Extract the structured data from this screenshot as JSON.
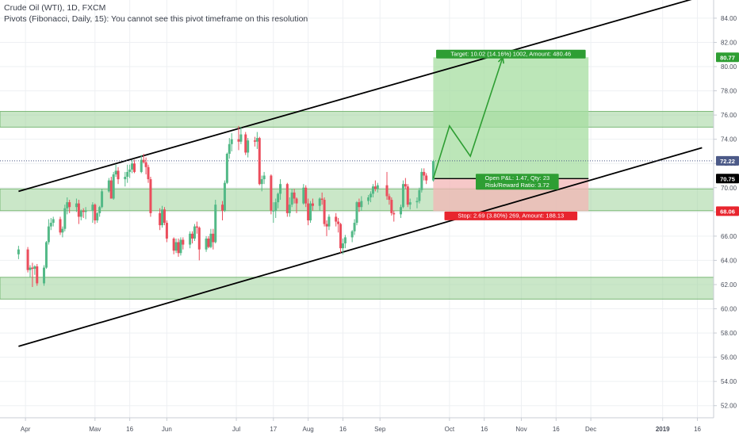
{
  "header": {
    "title": "Crude Oil (WTI), 1D, FXCM",
    "pivots_note": "Pivots (Fibonacci, Daily, 15): You cannot see this pivot timeframe on this resolution"
  },
  "colors": {
    "bull": "#53b987",
    "bear": "#eb4d5c",
    "zone_fill": "#9fd39b",
    "zone_stroke": "#7bb877",
    "target_fill": "#a5dea0",
    "stop_fill": "#f3b6b6",
    "target_label": "#2e9e33",
    "stop_label": "#e8252e",
    "entry_label": "#2e9e33",
    "price_line": "#4c5a88",
    "axis_text": "#4a4f5b",
    "grid": "#eef0f3"
  },
  "chart_data": {
    "type": "candlestick",
    "symbol": "Crude Oil (WTI)",
    "timeframe": "1D",
    "ylim": [
      51,
      85.5
    ],
    "y_ticks": [
      52.0,
      54.0,
      56.0,
      58.0,
      60.0,
      62.0,
      64.0,
      66.0,
      68.0,
      70.0,
      72.0,
      74.0,
      76.0,
      78.0,
      80.0,
      82.0,
      84.0
    ],
    "x_labels": [
      {
        "label": "Apr",
        "date": "2018-04-01"
      },
      {
        "label": "Mav",
        "date": "2018-05-01"
      },
      {
        "label": "16",
        "date": "2018-05-16"
      },
      {
        "label": "Jun",
        "date": "2018-06-01"
      },
      {
        "label": "Jul",
        "date": "2018-07-01"
      },
      {
        "label": "17",
        "date": "2018-07-17"
      },
      {
        "label": "Aug",
        "date": "2018-08-01"
      },
      {
        "label": "16",
        "date": "2018-08-16"
      },
      {
        "label": "Sep",
        "date": "2018-09-01"
      },
      {
        "label": "Oct",
        "date": "2018-10-01"
      },
      {
        "label": "16",
        "date": "2018-10-16"
      },
      {
        "label": "Nov",
        "date": "2018-11-01"
      },
      {
        "label": "16",
        "date": "2018-11-16"
      },
      {
        "label": "Dec",
        "date": "2018-12-01"
      },
      {
        "label": "2019",
        "date": "2019-01-01"
      },
      {
        "label": "16",
        "date": "2019-01-16"
      }
    ],
    "candles": [
      {
        "date": "2018-03-29",
        "o": 64.5,
        "h": 65.2,
        "l": 64.1,
        "c": 64.9
      },
      {
        "date": "2018-04-02",
        "o": 64.9,
        "h": 65.1,
        "l": 63.0,
        "c": 63.2
      },
      {
        "date": "2018-04-03",
        "o": 63.2,
        "h": 63.6,
        "l": 62.6,
        "c": 63.4
      },
      {
        "date": "2018-04-04",
        "o": 63.4,
        "h": 63.8,
        "l": 61.8,
        "c": 63.3
      },
      {
        "date": "2018-04-05",
        "o": 63.3,
        "h": 63.6,
        "l": 62.8,
        "c": 63.5
      },
      {
        "date": "2018-04-06",
        "o": 63.5,
        "h": 63.7,
        "l": 61.9,
        "c": 62.1
      },
      {
        "date": "2018-04-09",
        "o": 62.1,
        "h": 63.6,
        "l": 61.9,
        "c": 63.4
      },
      {
        "date": "2018-04-10",
        "o": 63.4,
        "h": 65.6,
        "l": 63.3,
        "c": 65.5
      },
      {
        "date": "2018-04-11",
        "o": 65.5,
        "h": 67.4,
        "l": 65.3,
        "c": 66.8
      },
      {
        "date": "2018-04-12",
        "o": 66.8,
        "h": 67.5,
        "l": 66.5,
        "c": 67.1
      },
      {
        "date": "2018-04-13",
        "o": 67.1,
        "h": 67.6,
        "l": 66.8,
        "c": 67.4
      },
      {
        "date": "2018-04-16",
        "o": 67.4,
        "h": 67.6,
        "l": 66.1,
        "c": 66.3
      },
      {
        "date": "2018-04-17",
        "o": 66.3,
        "h": 66.8,
        "l": 65.9,
        "c": 66.6
      },
      {
        "date": "2018-04-18",
        "o": 66.6,
        "h": 68.6,
        "l": 66.4,
        "c": 68.3
      },
      {
        "date": "2018-04-19",
        "o": 68.3,
        "h": 69.2,
        "l": 67.8,
        "c": 68.8
      },
      {
        "date": "2018-04-20",
        "o": 68.8,
        "h": 69.0,
        "l": 67.9,
        "c": 68.4
      },
      {
        "date": "2018-04-23",
        "o": 68.4,
        "h": 69.1,
        "l": 68.0,
        "c": 68.7
      },
      {
        "date": "2018-04-24",
        "o": 68.7,
        "h": 69.0,
        "l": 67.0,
        "c": 67.6
      },
      {
        "date": "2018-04-25",
        "o": 67.6,
        "h": 68.2,
        "l": 67.3,
        "c": 68.1
      },
      {
        "date": "2018-04-26",
        "o": 68.1,
        "h": 68.3,
        "l": 67.5,
        "c": 68.0
      },
      {
        "date": "2018-04-27",
        "o": 68.0,
        "h": 68.4,
        "l": 67.4,
        "c": 68.1
      },
      {
        "date": "2018-04-30",
        "o": 68.1,
        "h": 68.8,
        "l": 67.1,
        "c": 68.6
      },
      {
        "date": "2018-05-01",
        "o": 68.6,
        "h": 68.7,
        "l": 67.0,
        "c": 67.3
      },
      {
        "date": "2018-05-02",
        "o": 67.3,
        "h": 68.0,
        "l": 67.1,
        "c": 67.9
      },
      {
        "date": "2018-05-03",
        "o": 67.9,
        "h": 68.5,
        "l": 67.6,
        "c": 68.4
      },
      {
        "date": "2018-05-04",
        "o": 68.4,
        "h": 69.9,
        "l": 68.3,
        "c": 69.7
      },
      {
        "date": "2018-05-07",
        "o": 69.7,
        "h": 70.8,
        "l": 69.6,
        "c": 70.6
      },
      {
        "date": "2018-05-08",
        "o": 70.6,
        "h": 70.9,
        "l": 69.1,
        "c": 69.1
      },
      {
        "date": "2018-05-09",
        "o": 69.1,
        "h": 71.3,
        "l": 69.0,
        "c": 71.1
      },
      {
        "date": "2018-05-10",
        "o": 71.1,
        "h": 71.9,
        "l": 70.9,
        "c": 71.4
      },
      {
        "date": "2018-05-11",
        "o": 71.4,
        "h": 71.7,
        "l": 70.3,
        "c": 70.7
      },
      {
        "date": "2018-05-14",
        "o": 70.7,
        "h": 71.3,
        "l": 70.1,
        "c": 70.9
      },
      {
        "date": "2018-05-15",
        "o": 70.9,
        "h": 71.9,
        "l": 70.4,
        "c": 71.3
      },
      {
        "date": "2018-05-16",
        "o": 71.3,
        "h": 71.9,
        "l": 70.8,
        "c": 71.5
      },
      {
        "date": "2018-05-17",
        "o": 71.5,
        "h": 72.3,
        "l": 71.2,
        "c": 72.0
      },
      {
        "date": "2018-05-18",
        "o": 72.0,
        "h": 72.3,
        "l": 71.2,
        "c": 71.3
      },
      {
        "date": "2018-05-21",
        "o": 71.3,
        "h": 72.7,
        "l": 71.2,
        "c": 72.3
      },
      {
        "date": "2018-05-22",
        "o": 72.3,
        "h": 72.8,
        "l": 72.0,
        "c": 72.1
      },
      {
        "date": "2018-05-23",
        "o": 72.1,
        "h": 72.5,
        "l": 71.1,
        "c": 71.7
      },
      {
        "date": "2018-05-24",
        "o": 71.7,
        "h": 71.9,
        "l": 70.4,
        "c": 70.7
      },
      {
        "date": "2018-05-25",
        "o": 70.7,
        "h": 70.9,
        "l": 67.6,
        "c": 67.9
      },
      {
        "date": "2018-05-29",
        "o": 67.9,
        "h": 68.3,
        "l": 66.5,
        "c": 66.9
      },
      {
        "date": "2018-05-30",
        "o": 66.9,
        "h": 68.5,
        "l": 66.7,
        "c": 68.2
      },
      {
        "date": "2018-05-31",
        "o": 68.2,
        "h": 68.4,
        "l": 66.9,
        "c": 67.1
      },
      {
        "date": "2018-06-01",
        "o": 67.1,
        "h": 67.3,
        "l": 65.5,
        "c": 65.8
      },
      {
        "date": "2018-06-04",
        "o": 65.8,
        "h": 65.9,
        "l": 64.5,
        "c": 64.8
      },
      {
        "date": "2018-06-05",
        "o": 64.8,
        "h": 65.8,
        "l": 64.6,
        "c": 65.5
      },
      {
        "date": "2018-06-06",
        "o": 65.5,
        "h": 65.8,
        "l": 64.3,
        "c": 64.6
      },
      {
        "date": "2018-06-07",
        "o": 64.6,
        "h": 65.9,
        "l": 64.4,
        "c": 65.7
      },
      {
        "date": "2018-06-08",
        "o": 65.7,
        "h": 65.9,
        "l": 64.9,
        "c": 65.3
      },
      {
        "date": "2018-06-11",
        "o": 65.3,
        "h": 66.4,
        "l": 65.0,
        "c": 66.2
      },
      {
        "date": "2018-06-12",
        "o": 66.2,
        "h": 66.4,
        "l": 65.4,
        "c": 65.8
      },
      {
        "date": "2018-06-13",
        "o": 65.8,
        "h": 67.0,
        "l": 65.6,
        "c": 66.8
      },
      {
        "date": "2018-06-14",
        "o": 66.8,
        "h": 67.2,
        "l": 66.2,
        "c": 66.7
      },
      {
        "date": "2018-06-15",
        "o": 66.7,
        "h": 66.8,
        "l": 64.0,
        "c": 64.9
      },
      {
        "date": "2018-06-18",
        "o": 64.9,
        "h": 66.0,
        "l": 64.7,
        "c": 65.8
      },
      {
        "date": "2018-06-19",
        "o": 65.8,
        "h": 66.0,
        "l": 65.0,
        "c": 65.1
      },
      {
        "date": "2018-06-20",
        "o": 65.1,
        "h": 66.6,
        "l": 65.0,
        "c": 66.2
      },
      {
        "date": "2018-06-21",
        "o": 66.2,
        "h": 66.6,
        "l": 64.9,
        "c": 65.5
      },
      {
        "date": "2018-06-22",
        "o": 65.5,
        "h": 69.0,
        "l": 65.4,
        "c": 68.6
      },
      {
        "date": "2018-06-25",
        "o": 68.6,
        "h": 68.9,
        "l": 67.3,
        "c": 68.1
      },
      {
        "date": "2018-06-26",
        "o": 68.1,
        "h": 70.6,
        "l": 68.0,
        "c": 70.4
      },
      {
        "date": "2018-06-27",
        "o": 70.4,
        "h": 72.9,
        "l": 70.3,
        "c": 72.8
      },
      {
        "date": "2018-06-28",
        "o": 72.8,
        "h": 74.1,
        "l": 72.4,
        "c": 73.6
      },
      {
        "date": "2018-06-29",
        "o": 73.6,
        "h": 74.5,
        "l": 73.0,
        "c": 74.0
      },
      {
        "date": "2018-07-02",
        "o": 74.0,
        "h": 75.1,
        "l": 73.1,
        "c": 73.8
      },
      {
        "date": "2018-07-03",
        "o": 73.8,
        "h": 75.0,
        "l": 73.6,
        "c": 74.4
      },
      {
        "date": "2018-07-05",
        "o": 74.4,
        "h": 74.6,
        "l": 72.7,
        "c": 72.9
      },
      {
        "date": "2018-07-06",
        "o": 72.9,
        "h": 74.1,
        "l": 72.5,
        "c": 73.9
      },
      {
        "date": "2018-07-09",
        "o": 73.9,
        "h": 74.2,
        "l": 73.4,
        "c": 73.8
      },
      {
        "date": "2018-07-10",
        "o": 73.8,
        "h": 74.6,
        "l": 73.2,
        "c": 74.1
      },
      {
        "date": "2018-07-11",
        "o": 74.1,
        "h": 74.2,
        "l": 70.2,
        "c": 70.3
      },
      {
        "date": "2018-07-12",
        "o": 70.3,
        "h": 71.0,
        "l": 69.7,
        "c": 70.7
      },
      {
        "date": "2018-07-13",
        "o": 70.7,
        "h": 71.3,
        "l": 70.3,
        "c": 71.0
      },
      {
        "date": "2018-07-16",
        "o": 71.0,
        "h": 71.1,
        "l": 67.8,
        "c": 68.1
      },
      {
        "date": "2018-07-17",
        "o": 68.1,
        "h": 68.8,
        "l": 67.1,
        "c": 68.1
      },
      {
        "date": "2018-07-18",
        "o": 68.1,
        "h": 69.1,
        "l": 67.5,
        "c": 68.8
      },
      {
        "date": "2018-07-19",
        "o": 68.8,
        "h": 69.6,
        "l": 68.3,
        "c": 69.5
      },
      {
        "date": "2018-07-20",
        "o": 69.5,
        "h": 70.7,
        "l": 69.0,
        "c": 70.3
      },
      {
        "date": "2018-07-23",
        "o": 70.3,
        "h": 70.4,
        "l": 67.6,
        "c": 67.9
      },
      {
        "date": "2018-07-24",
        "o": 67.9,
        "h": 69.2,
        "l": 67.6,
        "c": 68.6
      },
      {
        "date": "2018-07-25",
        "o": 68.6,
        "h": 69.9,
        "l": 68.4,
        "c": 69.6
      },
      {
        "date": "2018-07-26",
        "o": 69.6,
        "h": 69.9,
        "l": 68.7,
        "c": 69.1
      },
      {
        "date": "2018-07-27",
        "o": 69.1,
        "h": 69.2,
        "l": 67.9,
        "c": 68.7
      },
      {
        "date": "2018-07-30",
        "o": 68.7,
        "h": 70.3,
        "l": 68.6,
        "c": 70.0
      },
      {
        "date": "2018-07-31",
        "o": 70.0,
        "h": 70.2,
        "l": 68.4,
        "c": 68.7
      },
      {
        "date": "2018-08-01",
        "o": 68.7,
        "h": 69.1,
        "l": 66.9,
        "c": 67.3
      },
      {
        "date": "2018-08-02",
        "o": 67.3,
        "h": 68.9,
        "l": 67.1,
        "c": 68.7
      },
      {
        "date": "2018-08-03",
        "o": 68.7,
        "h": 69.1,
        "l": 68.1,
        "c": 68.5
      },
      {
        "date": "2018-08-06",
        "o": 68.5,
        "h": 69.2,
        "l": 68.1,
        "c": 69.1
      },
      {
        "date": "2018-08-07",
        "o": 69.1,
        "h": 69.6,
        "l": 68.6,
        "c": 69.0
      },
      {
        "date": "2018-08-08",
        "o": 69.0,
        "h": 69.2,
        "l": 66.8,
        "c": 67.0
      },
      {
        "date": "2018-08-09",
        "o": 67.0,
        "h": 67.3,
        "l": 66.0,
        "c": 66.8
      },
      {
        "date": "2018-08-10",
        "o": 66.8,
        "h": 67.8,
        "l": 66.5,
        "c": 67.6
      },
      {
        "date": "2018-08-13",
        "o": 67.6,
        "h": 67.9,
        "l": 66.8,
        "c": 67.2
      },
      {
        "date": "2018-08-14",
        "o": 67.2,
        "h": 67.5,
        "l": 66.3,
        "c": 67.0
      },
      {
        "date": "2018-08-15",
        "o": 67.0,
        "h": 67.1,
        "l": 64.6,
        "c": 65.0
      },
      {
        "date": "2018-08-16",
        "o": 65.0,
        "h": 65.8,
        "l": 64.5,
        "c": 65.4
      },
      {
        "date": "2018-08-17",
        "o": 65.4,
        "h": 66.1,
        "l": 65.0,
        "c": 65.9
      },
      {
        "date": "2018-08-20",
        "o": 65.9,
        "h": 66.5,
        "l": 65.5,
        "c": 66.4
      },
      {
        "date": "2018-08-21",
        "o": 66.4,
        "h": 67.4,
        "l": 66.1,
        "c": 67.1
      },
      {
        "date": "2018-08-22",
        "o": 67.1,
        "h": 68.9,
        "l": 66.9,
        "c": 68.8
      },
      {
        "date": "2018-08-23",
        "o": 68.8,
        "h": 69.1,
        "l": 68.0,
        "c": 68.4
      },
      {
        "date": "2018-08-24",
        "o": 68.4,
        "h": 69.3,
        "l": 68.1,
        "c": 68.9
      },
      {
        "date": "2018-08-27",
        "o": 68.9,
        "h": 69.4,
        "l": 68.6,
        "c": 69.2
      },
      {
        "date": "2018-08-28",
        "o": 69.2,
        "h": 69.7,
        "l": 68.8,
        "c": 69.5
      },
      {
        "date": "2018-08-29",
        "o": 69.5,
        "h": 70.3,
        "l": 69.2,
        "c": 70.1
      },
      {
        "date": "2018-08-30",
        "o": 70.1,
        "h": 70.6,
        "l": 69.7,
        "c": 69.9
      },
      {
        "date": "2018-08-31",
        "o": 69.9,
        "h": 70.4,
        "l": 69.6,
        "c": 70.2
      },
      {
        "date": "2018-09-04",
        "o": 70.2,
        "h": 71.3,
        "l": 69.0,
        "c": 69.3
      },
      {
        "date": "2018-09-05",
        "o": 69.3,
        "h": 69.5,
        "l": 68.6,
        "c": 69.0
      },
      {
        "date": "2018-09-06",
        "o": 69.0,
        "h": 69.2,
        "l": 67.7,
        "c": 67.9
      },
      {
        "date": "2018-09-07",
        "o": 67.9,
        "h": 68.1,
        "l": 67.2,
        "c": 67.8
      },
      {
        "date": "2018-09-10",
        "o": 67.8,
        "h": 68.6,
        "l": 67.5,
        "c": 68.4
      },
      {
        "date": "2018-09-11",
        "o": 68.4,
        "h": 70.6,
        "l": 68.3,
        "c": 70.3
      },
      {
        "date": "2018-09-12",
        "o": 70.3,
        "h": 70.8,
        "l": 69.9,
        "c": 70.1
      },
      {
        "date": "2018-09-13",
        "o": 70.1,
        "h": 70.3,
        "l": 68.4,
        "c": 68.6
      },
      {
        "date": "2018-09-14",
        "o": 68.6,
        "h": 69.1,
        "l": 68.2,
        "c": 68.8
      },
      {
        "date": "2018-09-17",
        "o": 68.8,
        "h": 69.2,
        "l": 68.3,
        "c": 68.9
      },
      {
        "date": "2018-09-18",
        "o": 68.9,
        "h": 70.0,
        "l": 68.7,
        "c": 69.8
      },
      {
        "date": "2018-09-19",
        "o": 69.8,
        "h": 71.6,
        "l": 69.6,
        "c": 71.3
      },
      {
        "date": "2018-09-20",
        "o": 71.3,
        "h": 71.6,
        "l": 70.6,
        "c": 71.0
      },
      {
        "date": "2018-09-21",
        "o": 71.0,
        "h": 71.2,
        "l": 70.3,
        "c": 70.6
      },
      {
        "date": "2018-09-24",
        "o": 70.6,
        "h": 72.3,
        "l": 70.5,
        "c": 72.2
      }
    ],
    "channel": {
      "upper": [
        {
          "date": "2018-03-29",
          "price": 69.7
        },
        {
          "date": "2019-01-18",
          "price": 85.8
        }
      ],
      "lower": [
        {
          "date": "2018-03-29",
          "price": 56.9
        },
        {
          "date": "2019-01-18",
          "price": 73.3
        }
      ]
    },
    "zones": [
      {
        "top": 76.3,
        "bottom": 75.0
      },
      {
        "top": 69.9,
        "bottom": 68.1
      },
      {
        "top": 62.6,
        "bottom": 60.8
      }
    ],
    "position": {
      "start": "2018-09-24",
      "end": "2018-11-30",
      "entry": 70.75,
      "target": 80.77,
      "stop": 68.06,
      "target_label": "Target: 10.02 (14.16%) 1002, Amount: 480.46",
      "stop_label": "Stop: 2.69 (3.80%) 269, Amount: 188.13",
      "open_label_1": "Open P&L: 1.47, Qty: 23",
      "open_label_2": "Risk/Reward Ratio: 3.72"
    },
    "projection": [
      {
        "date": "2018-09-24",
        "price": 70.75
      },
      {
        "date": "2018-10-01",
        "price": 75.1
      },
      {
        "date": "2018-10-10",
        "price": 72.6
      },
      {
        "date": "2018-10-24",
        "price": 80.77
      }
    ],
    "last_price": 72.22,
    "price_labels": [
      "80.77",
      "72.22",
      "70.75",
      "68.06"
    ]
  }
}
